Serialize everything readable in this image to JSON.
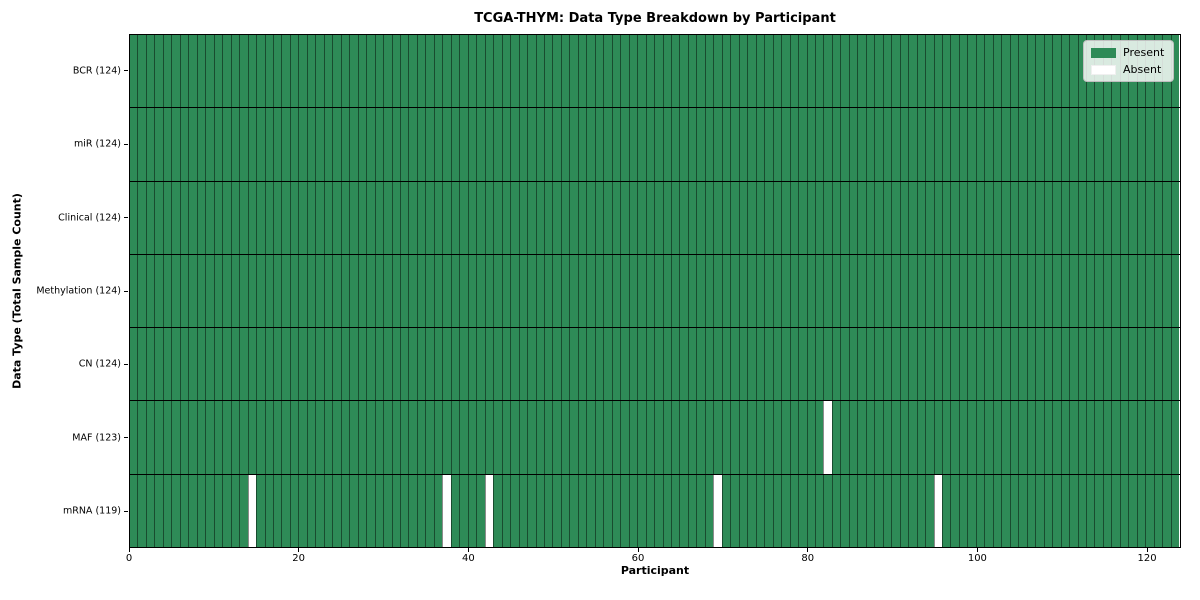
{
  "chart_data": {
    "type": "heatmap",
    "title": "TCGA-THYM: Data Type Breakdown by Participant",
    "xlabel": "Participant",
    "ylabel": "Data Type (Total Sample Count)",
    "n_participants": 124,
    "x_range": [
      0,
      124
    ],
    "x_ticks": [
      0,
      20,
      40,
      60,
      80,
      100,
      120
    ],
    "rows": [
      {
        "label": "BCR (124)",
        "data_type": "BCR",
        "present_count": 124,
        "absent_participants": []
      },
      {
        "label": "miR (124)",
        "data_type": "miR",
        "present_count": 124,
        "absent_participants": []
      },
      {
        "label": "Clinical (124)",
        "data_type": "Clinical",
        "present_count": 124,
        "absent_participants": []
      },
      {
        "label": "Methylation (124)",
        "data_type": "Methylation",
        "present_count": 124,
        "absent_participants": []
      },
      {
        "label": "CN (124)",
        "data_type": "CN",
        "present_count": 124,
        "absent_participants": []
      },
      {
        "label": "MAF (123)",
        "data_type": "MAF",
        "present_count": 123,
        "absent_participants": [
          82
        ]
      },
      {
        "label": "mRNA (119)",
        "data_type": "mRNA",
        "present_count": 119,
        "absent_participants": [
          14,
          37,
          42,
          69,
          95
        ]
      }
    ],
    "legend": [
      {
        "label": "Present",
        "color": "#2e8b57"
      },
      {
        "label": "Absent",
        "color": "#ffffff"
      }
    ],
    "colors": {
      "present": "#2e8b57",
      "absent": "#ffffff",
      "cell_border": "rgba(0,0,0,0.45)",
      "row_border": "#000000",
      "spine": "#000000"
    },
    "layout_hints": {
      "grid": "on",
      "legend_position": "upper right",
      "orientation": "rows = data types (top to bottom), columns = participants 0-123"
    }
  }
}
